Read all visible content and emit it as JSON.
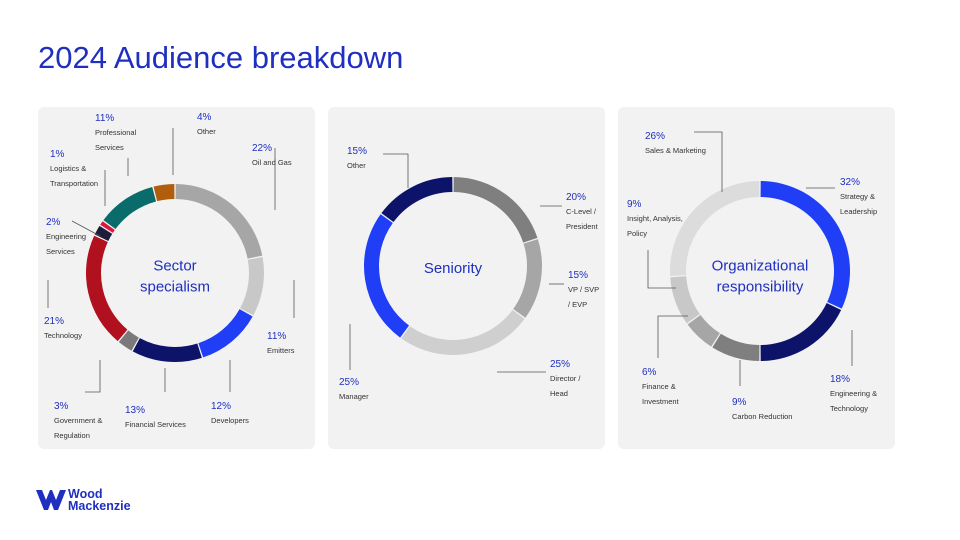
{
  "title": "2024 Audience breakdown",
  "colors": {
    "accent": "#1f2fbf"
  },
  "logo": {
    "line1": "Wood",
    "line2": "Mackenzie"
  },
  "chart_data": [
    {
      "type": "pie",
      "center_label": [
        "Sector",
        "specialism"
      ],
      "slices": [
        {
          "name": "Oil and Gas",
          "pct": "22%",
          "value": 22,
          "color": "#a6a6a6"
        },
        {
          "name": "Emitters",
          "pct": "11%",
          "value": 11,
          "color": "#c8c8c8"
        },
        {
          "name": "Developers",
          "pct": "12%",
          "value": 12,
          "color": "#1f3ef5"
        },
        {
          "name": "Financial Services",
          "pct": "13%",
          "value": 13,
          "color": "#0c1369"
        },
        {
          "name": "Government & Regulation",
          "pct": "3%",
          "value": 3,
          "color": "#7a7a7a"
        },
        {
          "name": "Technology",
          "pct": "21%",
          "value": 21,
          "color": "#b1101e"
        },
        {
          "name": "Engineering Services",
          "pct": "2%",
          "value": 2,
          "color": "#1d1d3a"
        },
        {
          "name": "Logistics & Transportation",
          "pct": "1%",
          "value": 1,
          "color": "#d8183c"
        },
        {
          "name": "Professional Services",
          "pct": "11%",
          "value": 11,
          "color": "#0a6b6b"
        },
        {
          "name": "Other",
          "pct": "4%",
          "value": 4,
          "color": "#b25d0c"
        }
      ]
    },
    {
      "type": "pie",
      "center_label": [
        "Seniority"
      ],
      "slices": [
        {
          "name": "C-Level / President",
          "pct": "20%",
          "value": 20,
          "color": "#7f7f7f"
        },
        {
          "name": "VP / SVP / EVP",
          "pct": "15%",
          "value": 15,
          "color": "#a6a6a6"
        },
        {
          "name": "Director / Head",
          "pct": "25%",
          "value": 25,
          "color": "#cfcfcf"
        },
        {
          "name": "Manager",
          "pct": "25%",
          "value": 25,
          "color": "#1f3ef5"
        },
        {
          "name": "Other",
          "pct": "15%",
          "value": 15,
          "color": "#0c1369"
        }
      ]
    },
    {
      "type": "pie",
      "center_label": [
        "Organizational",
        "responsibility"
      ],
      "slices": [
        {
          "name": "Strategy & Leadership",
          "pct": "32%",
          "value": 32,
          "color": "#1f3ef5"
        },
        {
          "name": "Engineering & Technology",
          "pct": "18%",
          "value": 18,
          "color": "#0c1369"
        },
        {
          "name": "Carbon Reduction",
          "pct": "9%",
          "value": 9,
          "color": "#7f7f7f"
        },
        {
          "name": "Finance & Investment",
          "pct": "6%",
          "value": 6,
          "color": "#a6a6a6"
        },
        {
          "name": "Insight, Analysis, Policy",
          "pct": "9%",
          "value": 9,
          "color": "#c8c8c8"
        },
        {
          "name": "Sales & Marketing",
          "pct": "26%",
          "value": 26,
          "color": "#dcdcdc"
        }
      ]
    }
  ]
}
